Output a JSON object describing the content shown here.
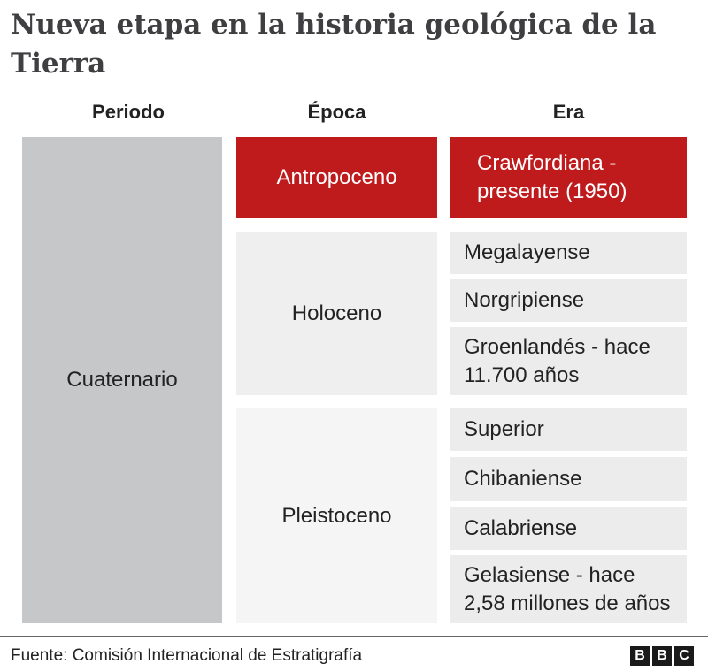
{
  "title": "Nueva etapa en la historia geológica de la Tierra",
  "headers": {
    "periodo": "Periodo",
    "epoca": "Época",
    "era": "Era"
  },
  "periodo": "Cuaternario",
  "epocas": {
    "antropoceno": "Antropoceno",
    "holoceno": "Holoceno",
    "pleistoceno": "Pleistoceno"
  },
  "eras": {
    "crawfordiana": "Crawfordiana - presente (1950)",
    "megalayense": "Megalayense",
    "norgripiense": "Norgripiense",
    "groenlandes": "Groenlandés - hace 11.700 años",
    "superior": "Superior",
    "chibaniense": "Chibaniense",
    "calabriense": "Calabriense",
    "gelasiense": "Gelasiense - hace 2,58 millones de años"
  },
  "footer": {
    "source": "Fuente: Comisión Internacional de Estratigrafía",
    "logo": [
      "B",
      "B",
      "C"
    ]
  },
  "colors": {
    "highlight": "#bf1a1c",
    "periodo": "#c6c7c9",
    "epoca": "#efeff0",
    "era": "#ececed"
  }
}
